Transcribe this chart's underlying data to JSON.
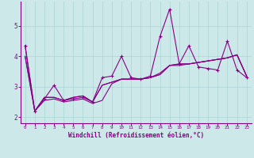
{
  "xlabel": "Windchill (Refroidissement éolien,°C)",
  "background_color": "#cce8e8",
  "line_color": "#880088",
  "grid_color": "#aad4d4",
  "xlim": [
    -0.5,
    23.5
  ],
  "ylim": [
    1.8,
    5.8
  ],
  "xticks": [
    0,
    1,
    2,
    3,
    4,
    5,
    6,
    7,
    8,
    9,
    10,
    11,
    12,
    13,
    14,
    15,
    16,
    17,
    18,
    19,
    20,
    21,
    22,
    23
  ],
  "yticks": [
    2,
    3,
    4,
    5
  ],
  "marker_series": [
    0,
    1,
    2,
    3,
    4,
    5,
    6,
    7,
    8,
    9,
    10,
    11,
    12,
    13,
    14,
    15,
    16,
    17,
    18,
    19,
    20,
    21,
    22,
    23
  ],
  "series": [
    [
      4.35,
      2.2,
      2.6,
      3.05,
      2.55,
      2.6,
      2.65,
      2.5,
      3.3,
      3.35,
      4.0,
      3.3,
      3.25,
      3.35,
      4.65,
      5.55,
      3.75,
      4.35,
      3.65,
      3.6,
      3.55,
      4.5,
      3.55,
      3.3
    ],
    [
      4.0,
      2.2,
      2.65,
      2.65,
      2.55,
      2.65,
      2.7,
      2.5,
      3.05,
      3.15,
      3.25,
      3.25,
      3.25,
      3.3,
      3.4,
      3.7,
      3.75,
      3.75,
      3.8,
      3.85,
      3.9,
      3.95,
      4.05,
      3.35
    ],
    [
      4.0,
      2.2,
      2.65,
      2.65,
      2.55,
      2.65,
      2.7,
      2.5,
      3.05,
      3.15,
      3.25,
      3.25,
      3.25,
      3.3,
      3.4,
      3.7,
      3.75,
      3.75,
      3.8,
      3.85,
      3.9,
      3.95,
      4.05,
      3.35
    ],
    [
      4.35,
      2.2,
      2.55,
      2.6,
      2.5,
      2.55,
      2.6,
      2.45,
      2.55,
      3.1,
      3.25,
      3.25,
      3.25,
      3.3,
      3.45,
      3.7,
      3.7,
      3.75,
      3.8,
      3.85,
      3.9,
      3.95,
      4.05,
      3.35
    ]
  ],
  "xlabel_fontsize": 5.5,
  "xtick_fontsize": 4.2,
  "ytick_fontsize": 5.5
}
